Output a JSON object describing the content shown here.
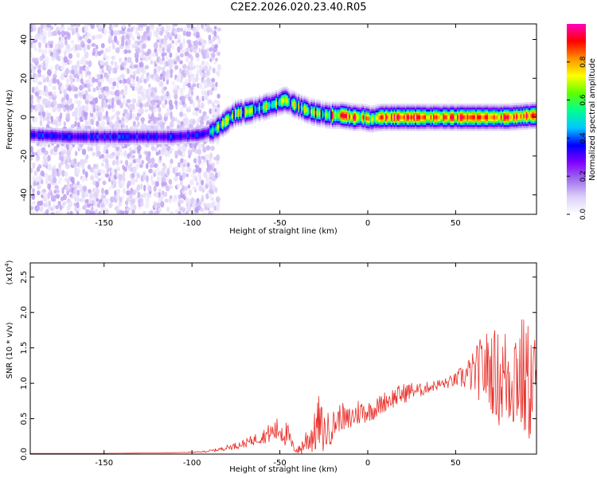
{
  "title": "C2E2.2026.020.23.40.R05",
  "chart_data": [
    {
      "type": "heatmap",
      "title": "",
      "xlabel": "Height of straight line (km)",
      "ylabel": "Frequency (Hz)",
      "xlim": [
        -192,
        96
      ],
      "ylim": [
        -50,
        48
      ],
      "xticks": [
        -150,
        -100,
        -50,
        0,
        50
      ],
      "xtick_labels": [
        "-150",
        "-100",
        "-50",
        "0",
        "50"
      ],
      "yticks": [
        -40,
        -20,
        0,
        20,
        40
      ],
      "ytick_labels": [
        "-40",
        "-20",
        "0",
        "20",
        "40"
      ],
      "ridge": {
        "x": [
          -192,
          -170,
          -150,
          -130,
          -110,
          -95,
          -88,
          -82,
          -75,
          -68,
          -60,
          -52,
          -47,
          -43,
          -38,
          -33,
          -28,
          -22,
          -15,
          -8,
          -3,
          2,
          8,
          20,
          40,
          60,
          80,
          96
        ],
        "frequency": [
          -9,
          -10,
          -10,
          -10,
          -10,
          -9,
          -7,
          -3,
          2,
          3,
          5,
          7,
          9,
          7,
          5,
          3,
          2,
          1,
          1,
          0,
          0,
          -1,
          0,
          0,
          0,
          0,
          0,
          1
        ]
      },
      "colorbar": {
        "label": "Normalized spectral amplitude",
        "range": [
          0.0,
          1.0
        ],
        "ticks": [
          0.0,
          0.2,
          0.4,
          0.6,
          0.8
        ],
        "tick_labels": [
          "0.0",
          "0.2",
          "0.4",
          "0.6",
          "0.8"
        ],
        "colors": [
          "#ffffff",
          "#ddd0f8",
          "#a070ee",
          "#8000ff",
          "#0000ff",
          "#00c8ff",
          "#00ff90",
          "#60ff00",
          "#ffff00",
          "#ff9000",
          "#ff0000",
          "#ff00c0"
        ]
      }
    },
    {
      "type": "line",
      "title": "",
      "xlabel": "Height of straight line (km)",
      "ylabel": "SNR (10 * v/v)",
      "multiplier_label": "(x10",
      "multiplier_exp": "4",
      "xlim": [
        -192,
        96
      ],
      "ylim": [
        0,
        2.7
      ],
      "xticks": [
        -150,
        -100,
        -50,
        0,
        50
      ],
      "xtick_labels": [
        "-150",
        "-100",
        "-50",
        "0",
        "50"
      ],
      "yticks": [
        0,
        0.5,
        1.0,
        1.5,
        2.0,
        2.5
      ],
      "ytick_labels": [
        "0.0",
        "0.5",
        "1.0",
        "1.5",
        "2.0",
        "2.5"
      ],
      "color": "#e8302a",
      "series": [
        {
          "x": [
            -192,
            -150,
            -110,
            -95,
            -88,
            -82,
            -75,
            -70,
            -65,
            -60,
            -55,
            -50,
            -47,
            -45,
            -43,
            -40,
            -38,
            -35,
            -30,
            -28,
            -25,
            -22,
            -18,
            -15,
            -12,
            -10,
            -5,
            0,
            5,
            10,
            15,
            20,
            25,
            30,
            35,
            40,
            45,
            50,
            55,
            60,
            65,
            70,
            75,
            80,
            85,
            90,
            96
          ],
          "y": [
            0.01,
            0.01,
            0.02,
            0.03,
            0.05,
            0.08,
            0.12,
            0.15,
            0.2,
            0.25,
            0.3,
            0.35,
            0.3,
            0.25,
            0.12,
            0.05,
            0.08,
            0.2,
            0.3,
            0.45,
            0.3,
            0.35,
            0.45,
            0.55,
            0.45,
            0.5,
            0.6,
            0.6,
            0.65,
            0.75,
            0.8,
            0.85,
            0.9,
            0.9,
            0.95,
            0.98,
            1.0,
            1.05,
            1.1,
            1.15,
            1.2,
            1.2,
            1.05,
            1.1,
            1.2,
            1.0,
            1.0
          ],
          "spread": [
            0,
            0,
            0,
            0.01,
            0.02,
            0.03,
            0.05,
            0.06,
            0.08,
            0.1,
            0.15,
            0.2,
            0.2,
            0.15,
            0.08,
            0.05,
            0.1,
            0.2,
            0.3,
            0.4,
            0.3,
            0.25,
            0.2,
            0.2,
            0.2,
            0.2,
            0.2,
            0.15,
            0.15,
            0.15,
            0.15,
            0.15,
            0.12,
            0.1,
            0.08,
            0.08,
            0.08,
            0.1,
            0.2,
            0.3,
            0.5,
            0.6,
            0.7,
            0.8,
            0.9,
            0.9,
            0.8
          ]
        }
      ]
    }
  ]
}
